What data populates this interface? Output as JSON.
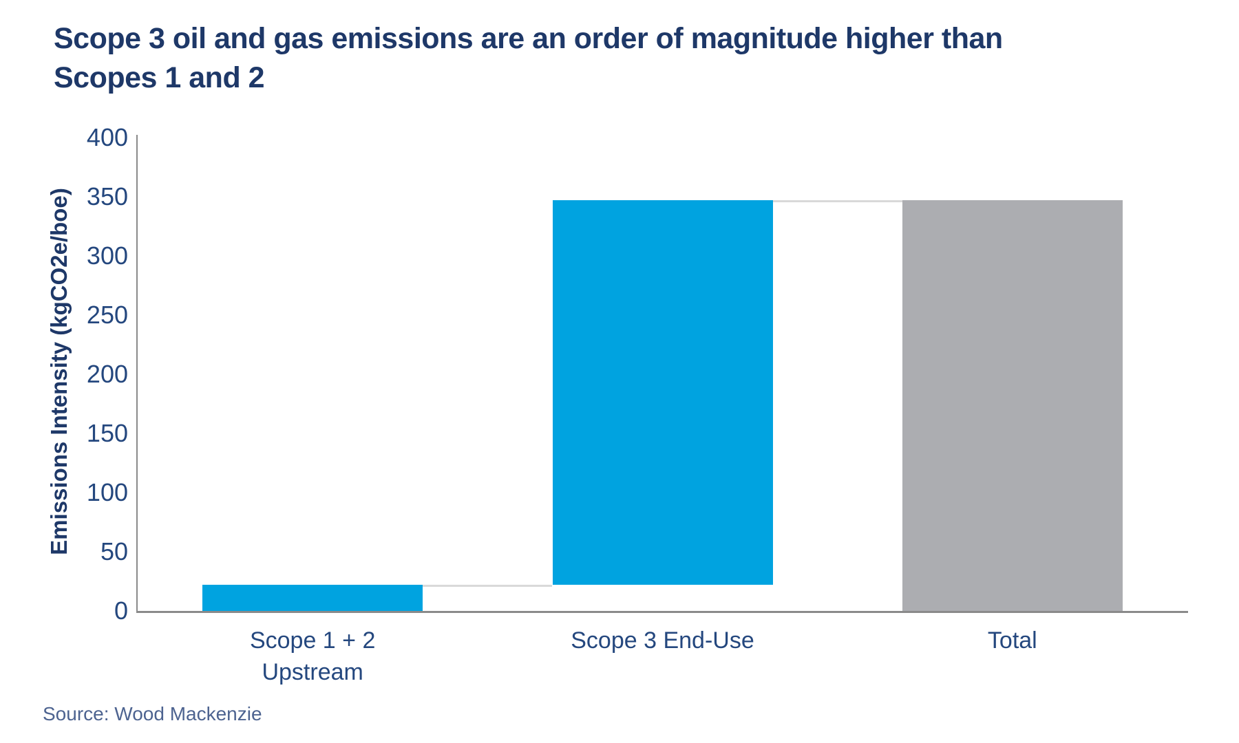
{
  "header": {
    "title": "Scope 3 oil and gas emissions are an order of magnitude higher than Scopes 1 and 2",
    "title_lines": [
      "Scope 3 oil and gas emissions are an order of magnitude higher than",
      "Scopes 1 and 2"
    ],
    "title_color": "#1E3868"
  },
  "footer": {
    "source": "Source: Wood Mackenzie"
  },
  "chart_data": {
    "type": "bar",
    "subtype": "waterfall",
    "title": "Scope 3 oil and gas emissions are an order of magnitude higher than Scopes 1 and 2",
    "xlabel": "",
    "ylabel": "Emissions Intensity (kgCO2e/boe)",
    "ylim": [
      0,
      400
    ],
    "ytick_step": 50,
    "ytick_labels": [
      "0",
      "50",
      "100",
      "150",
      "200",
      "250",
      "300",
      "350",
      "400"
    ],
    "grid": false,
    "legend": false,
    "categories": [
      "Scope 1 + 2 Upstream",
      "Scope 3 End-Use",
      "Total"
    ],
    "category_label_lines": [
      [
        "Scope 1 + 2",
        "Upstream"
      ],
      [
        "Scope 3 End-Use"
      ],
      [
        "Total"
      ]
    ],
    "series": [
      {
        "name": "Scope 1 + 2 Upstream",
        "start": 0,
        "end": 22,
        "value": 22,
        "color": "#00A3E0"
      },
      {
        "name": "Scope 3 End-Use",
        "start": 22,
        "end": 347,
        "value": 325,
        "color": "#00A3E0"
      },
      {
        "name": "Total",
        "start": 0,
        "end": 347,
        "value": 347,
        "color": "#ACADB1"
      }
    ],
    "connectors": [
      {
        "from_index": 0,
        "to_index": 1,
        "value": 22
      },
      {
        "from_index": 1,
        "to_index": 2,
        "value": 347
      }
    ],
    "colors": {
      "bar_blue": "#00A3E0",
      "bar_gray": "#ACADB1",
      "connector": "#D9D9D9",
      "axis_line": "#8A8A8A",
      "tick_label": "#24477E",
      "category_label": "#24477E"
    }
  }
}
